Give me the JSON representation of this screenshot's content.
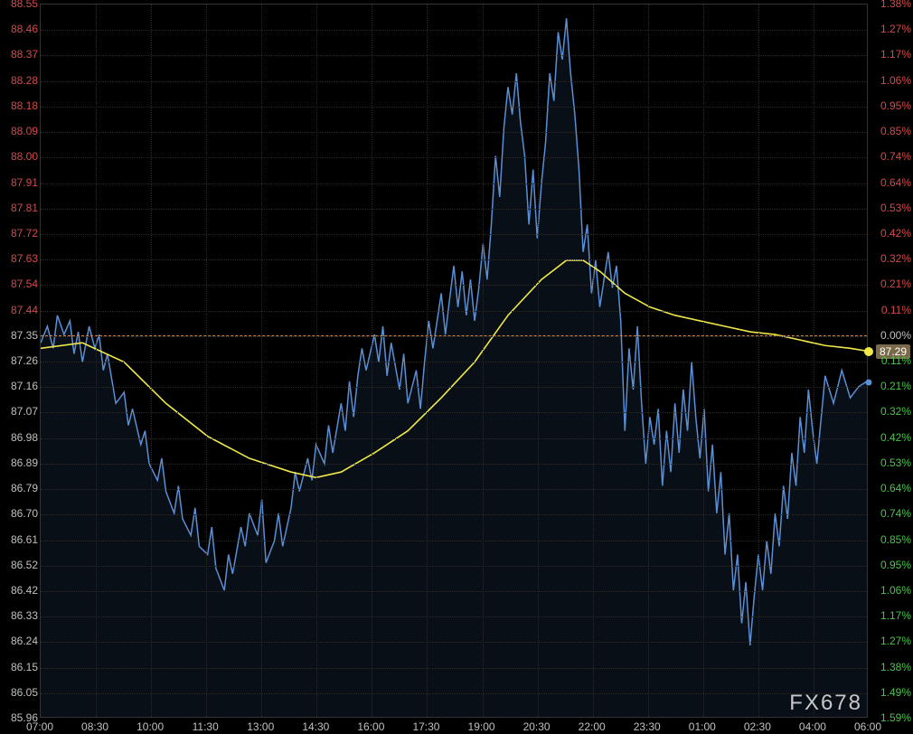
{
  "chart": {
    "type": "line",
    "background_color": "#000000",
    "grid_color": "#2a2a2a",
    "border_color": "#333333",
    "watermark": "FX678",
    "watermark_color": "rgba(220,220,220,0.9)",
    "axis_font_size": 12,
    "price_line_color": "#cc8844",
    "price_badge_bg": "#7a6a4a",
    "price_badge_value": "87.29",
    "left_axis": {
      "min": 85.96,
      "max": 88.55,
      "step": 0.0925,
      "labels": [
        "88.55",
        "88.46",
        "88.37",
        "88.28",
        "88.18",
        "88.09",
        "88.00",
        "87.91",
        "87.81",
        "87.72",
        "87.63",
        "87.54",
        "87.44",
        "87.35",
        "87.26",
        "87.16",
        "87.07",
        "86.98",
        "86.89",
        "86.79",
        "86.70",
        "86.61",
        "86.52",
        "86.42",
        "86.33",
        "86.24",
        "86.15",
        "86.05",
        "85.96"
      ],
      "color_neg": "#d44a4a",
      "color_zero": "#c0c0c0",
      "color_pos": "#c0c0c0"
    },
    "right_axis": {
      "labels": [
        "1.38%",
        "1.27%",
        "1.17%",
        "1.06%",
        "0.95%",
        "0.85%",
        "0.74%",
        "0.64%",
        "0.53%",
        "0.42%",
        "0.32%",
        "0.21%",
        "0.11%",
        "0.00%",
        "0.11%",
        "0.21%",
        "0.32%",
        "0.42%",
        "0.53%",
        "0.64%",
        "0.74%",
        "0.85%",
        "0.95%",
        "1.06%",
        "1.17%",
        "1.27%",
        "1.38%",
        "1.49%",
        "1.59%"
      ],
      "zero_index": 13,
      "color_pos": "#d44a4a",
      "color_zero": "#c0c0c0",
      "color_neg": "#4ac44a"
    },
    "x_axis": {
      "labels": [
        "07:00",
        "08:30",
        "10:00",
        "11:30",
        "13:00",
        "14:30",
        "16:00",
        "17:30",
        "19:00",
        "20:30",
        "22:00",
        "23:30",
        "01:00",
        "02:30",
        "04:00",
        "06:00"
      ],
      "label_color": "#c0c0c0"
    },
    "series": {
      "price": {
        "color": "#5a8fd6",
        "fill_color": "rgba(60,100,150,0.15)",
        "line_width": 1.5,
        "end_dot_color": "#5a8fd6",
        "data": [
          [
            0,
            87.32
          ],
          [
            0.8,
            87.38
          ],
          [
            1.5,
            87.3
          ],
          [
            2,
            87.42
          ],
          [
            2.8,
            87.35
          ],
          [
            3.5,
            87.4
          ],
          [
            4,
            87.28
          ],
          [
            4.5,
            87.36
          ],
          [
            5,
            87.25
          ],
          [
            5.8,
            87.38
          ],
          [
            6.5,
            87.3
          ],
          [
            7,
            87.35
          ],
          [
            7.5,
            87.22
          ],
          [
            8,
            87.28
          ],
          [
            9,
            87.1
          ],
          [
            10,
            87.14
          ],
          [
            10.5,
            87.02
          ],
          [
            11,
            87.08
          ],
          [
            12,
            86.95
          ],
          [
            12.5,
            87.0
          ],
          [
            13,
            86.88
          ],
          [
            14,
            86.82
          ],
          [
            14.5,
            86.9
          ],
          [
            15,
            86.78
          ],
          [
            16,
            86.7
          ],
          [
            16.5,
            86.8
          ],
          [
            17,
            86.68
          ],
          [
            18,
            86.62
          ],
          [
            18.5,
            86.72
          ],
          [
            19,
            86.58
          ],
          [
            20,
            86.55
          ],
          [
            20.5,
            86.65
          ],
          [
            21,
            86.5
          ],
          [
            22,
            86.42
          ],
          [
            22.5,
            86.55
          ],
          [
            23,
            86.48
          ],
          [
            24,
            86.65
          ],
          [
            24.5,
            86.58
          ],
          [
            25,
            86.7
          ],
          [
            26,
            86.62
          ],
          [
            26.5,
            86.75
          ],
          [
            27,
            86.52
          ],
          [
            28,
            86.6
          ],
          [
            28.5,
            86.7
          ],
          [
            29,
            86.58
          ],
          [
            30,
            86.72
          ],
          [
            30.5,
            86.85
          ],
          [
            31,
            86.78
          ],
          [
            32,
            86.9
          ],
          [
            32.5,
            86.82
          ],
          [
            33,
            86.95
          ],
          [
            34,
            86.88
          ],
          [
            34.5,
            87.02
          ],
          [
            35,
            86.92
          ],
          [
            36,
            87.1
          ],
          [
            36.5,
            87.0
          ],
          [
            37,
            87.18
          ],
          [
            37.5,
            87.05
          ],
          [
            38,
            87.2
          ],
          [
            38.5,
            87.3
          ],
          [
            39,
            87.22
          ],
          [
            40,
            87.35
          ],
          [
            40.5,
            87.25
          ],
          [
            41,
            87.38
          ],
          [
            41.5,
            87.2
          ],
          [
            42,
            87.32
          ],
          [
            43,
            87.15
          ],
          [
            43.5,
            87.28
          ],
          [
            44,
            87.1
          ],
          [
            45,
            87.22
          ],
          [
            45.5,
            87.08
          ],
          [
            46,
            87.25
          ],
          [
            46.5,
            87.4
          ],
          [
            47,
            87.3
          ],
          [
            48,
            87.5
          ],
          [
            48.5,
            87.35
          ],
          [
            49,
            87.48
          ],
          [
            49.5,
            87.6
          ],
          [
            50,
            87.45
          ],
          [
            50.5,
            87.58
          ],
          [
            51,
            87.42
          ],
          [
            51.5,
            87.55
          ],
          [
            52,
            87.4
          ],
          [
            52.5,
            87.52
          ],
          [
            53,
            87.68
          ],
          [
            53.5,
            87.55
          ],
          [
            54,
            87.75
          ],
          [
            54.5,
            88.0
          ],
          [
            55,
            87.85
          ],
          [
            55.5,
            88.1
          ],
          [
            56,
            88.25
          ],
          [
            56.5,
            88.15
          ],
          [
            57,
            88.3
          ],
          [
            57.5,
            88.12
          ],
          [
            58,
            88.0
          ],
          [
            58.5,
            87.75
          ],
          [
            59,
            87.95
          ],
          [
            59.5,
            87.7
          ],
          [
            60,
            87.9
          ],
          [
            60.5,
            88.05
          ],
          [
            61,
            88.3
          ],
          [
            61.5,
            88.2
          ],
          [
            62,
            88.45
          ],
          [
            62.5,
            88.35
          ],
          [
            63,
            88.5
          ],
          [
            63.5,
            88.3
          ],
          [
            64,
            88.15
          ],
          [
            64.5,
            87.95
          ],
          [
            65,
            87.65
          ],
          [
            65.5,
            87.75
          ],
          [
            66,
            87.5
          ],
          [
            66.5,
            87.62
          ],
          [
            67,
            87.45
          ],
          [
            67.5,
            87.55
          ],
          [
            68,
            87.65
          ],
          [
            68.5,
            87.52
          ],
          [
            69,
            87.6
          ],
          [
            69.5,
            87.4
          ],
          [
            70,
            87.0
          ],
          [
            70.5,
            87.3
          ],
          [
            71,
            87.15
          ],
          [
            71.5,
            87.38
          ],
          [
            72,
            87.1
          ],
          [
            72.5,
            86.88
          ],
          [
            73,
            87.05
          ],
          [
            73.5,
            86.95
          ],
          [
            74,
            87.08
          ],
          [
            74.5,
            86.8
          ],
          [
            75,
            87.0
          ],
          [
            75.5,
            86.85
          ],
          [
            76,
            87.1
          ],
          [
            76.5,
            86.92
          ],
          [
            77,
            87.15
          ],
          [
            77.5,
            87.0
          ],
          [
            78,
            87.25
          ],
          [
            78.5,
            87.05
          ],
          [
            79,
            86.9
          ],
          [
            79.5,
            87.08
          ],
          [
            80,
            86.78
          ],
          [
            80.5,
            86.95
          ],
          [
            81,
            86.7
          ],
          [
            81.5,
            86.85
          ],
          [
            82,
            86.55
          ],
          [
            82.5,
            86.7
          ],
          [
            83,
            86.42
          ],
          [
            83.5,
            86.55
          ],
          [
            84,
            86.3
          ],
          [
            84.5,
            86.45
          ],
          [
            85,
            86.22
          ],
          [
            85.5,
            86.4
          ],
          [
            86,
            86.55
          ],
          [
            86.5,
            86.42
          ],
          [
            87,
            86.6
          ],
          [
            87.5,
            86.48
          ],
          [
            88,
            86.7
          ],
          [
            88.5,
            86.58
          ],
          [
            89,
            86.8
          ],
          [
            89.5,
            86.68
          ],
          [
            90,
            86.92
          ],
          [
            90.5,
            86.8
          ],
          [
            91,
            87.05
          ],
          [
            91.5,
            86.92
          ],
          [
            92,
            87.15
          ],
          [
            92.5,
            87.0
          ],
          [
            93,
            86.88
          ],
          [
            94,
            87.2
          ],
          [
            95,
            87.1
          ],
          [
            96,
            87.22
          ],
          [
            97,
            87.12
          ],
          [
            98,
            87.16
          ],
          [
            99,
            87.18
          ]
        ]
      },
      "ma": {
        "color": "#f0e848",
        "line_width": 1.6,
        "end_dot_color": "#f0e848",
        "data": [
          [
            0,
            87.3
          ],
          [
            5,
            87.32
          ],
          [
            10,
            87.25
          ],
          [
            15,
            87.1
          ],
          [
            20,
            86.98
          ],
          [
            25,
            86.9
          ],
          [
            30,
            86.85
          ],
          [
            33,
            86.83
          ],
          [
            36,
            86.85
          ],
          [
            40,
            86.92
          ],
          [
            44,
            87.0
          ],
          [
            48,
            87.12
          ],
          [
            52,
            87.25
          ],
          [
            56,
            87.42
          ],
          [
            60,
            87.55
          ],
          [
            63,
            87.62
          ],
          [
            65,
            87.62
          ],
          [
            67,
            87.58
          ],
          [
            70,
            87.5
          ],
          [
            73,
            87.45
          ],
          [
            76,
            87.42
          ],
          [
            79,
            87.4
          ],
          [
            82,
            87.38
          ],
          [
            85,
            87.36
          ],
          [
            88,
            87.35
          ],
          [
            91,
            87.33
          ],
          [
            94,
            87.31
          ],
          [
            97,
            87.3
          ],
          [
            99,
            87.29
          ]
        ]
      }
    }
  }
}
